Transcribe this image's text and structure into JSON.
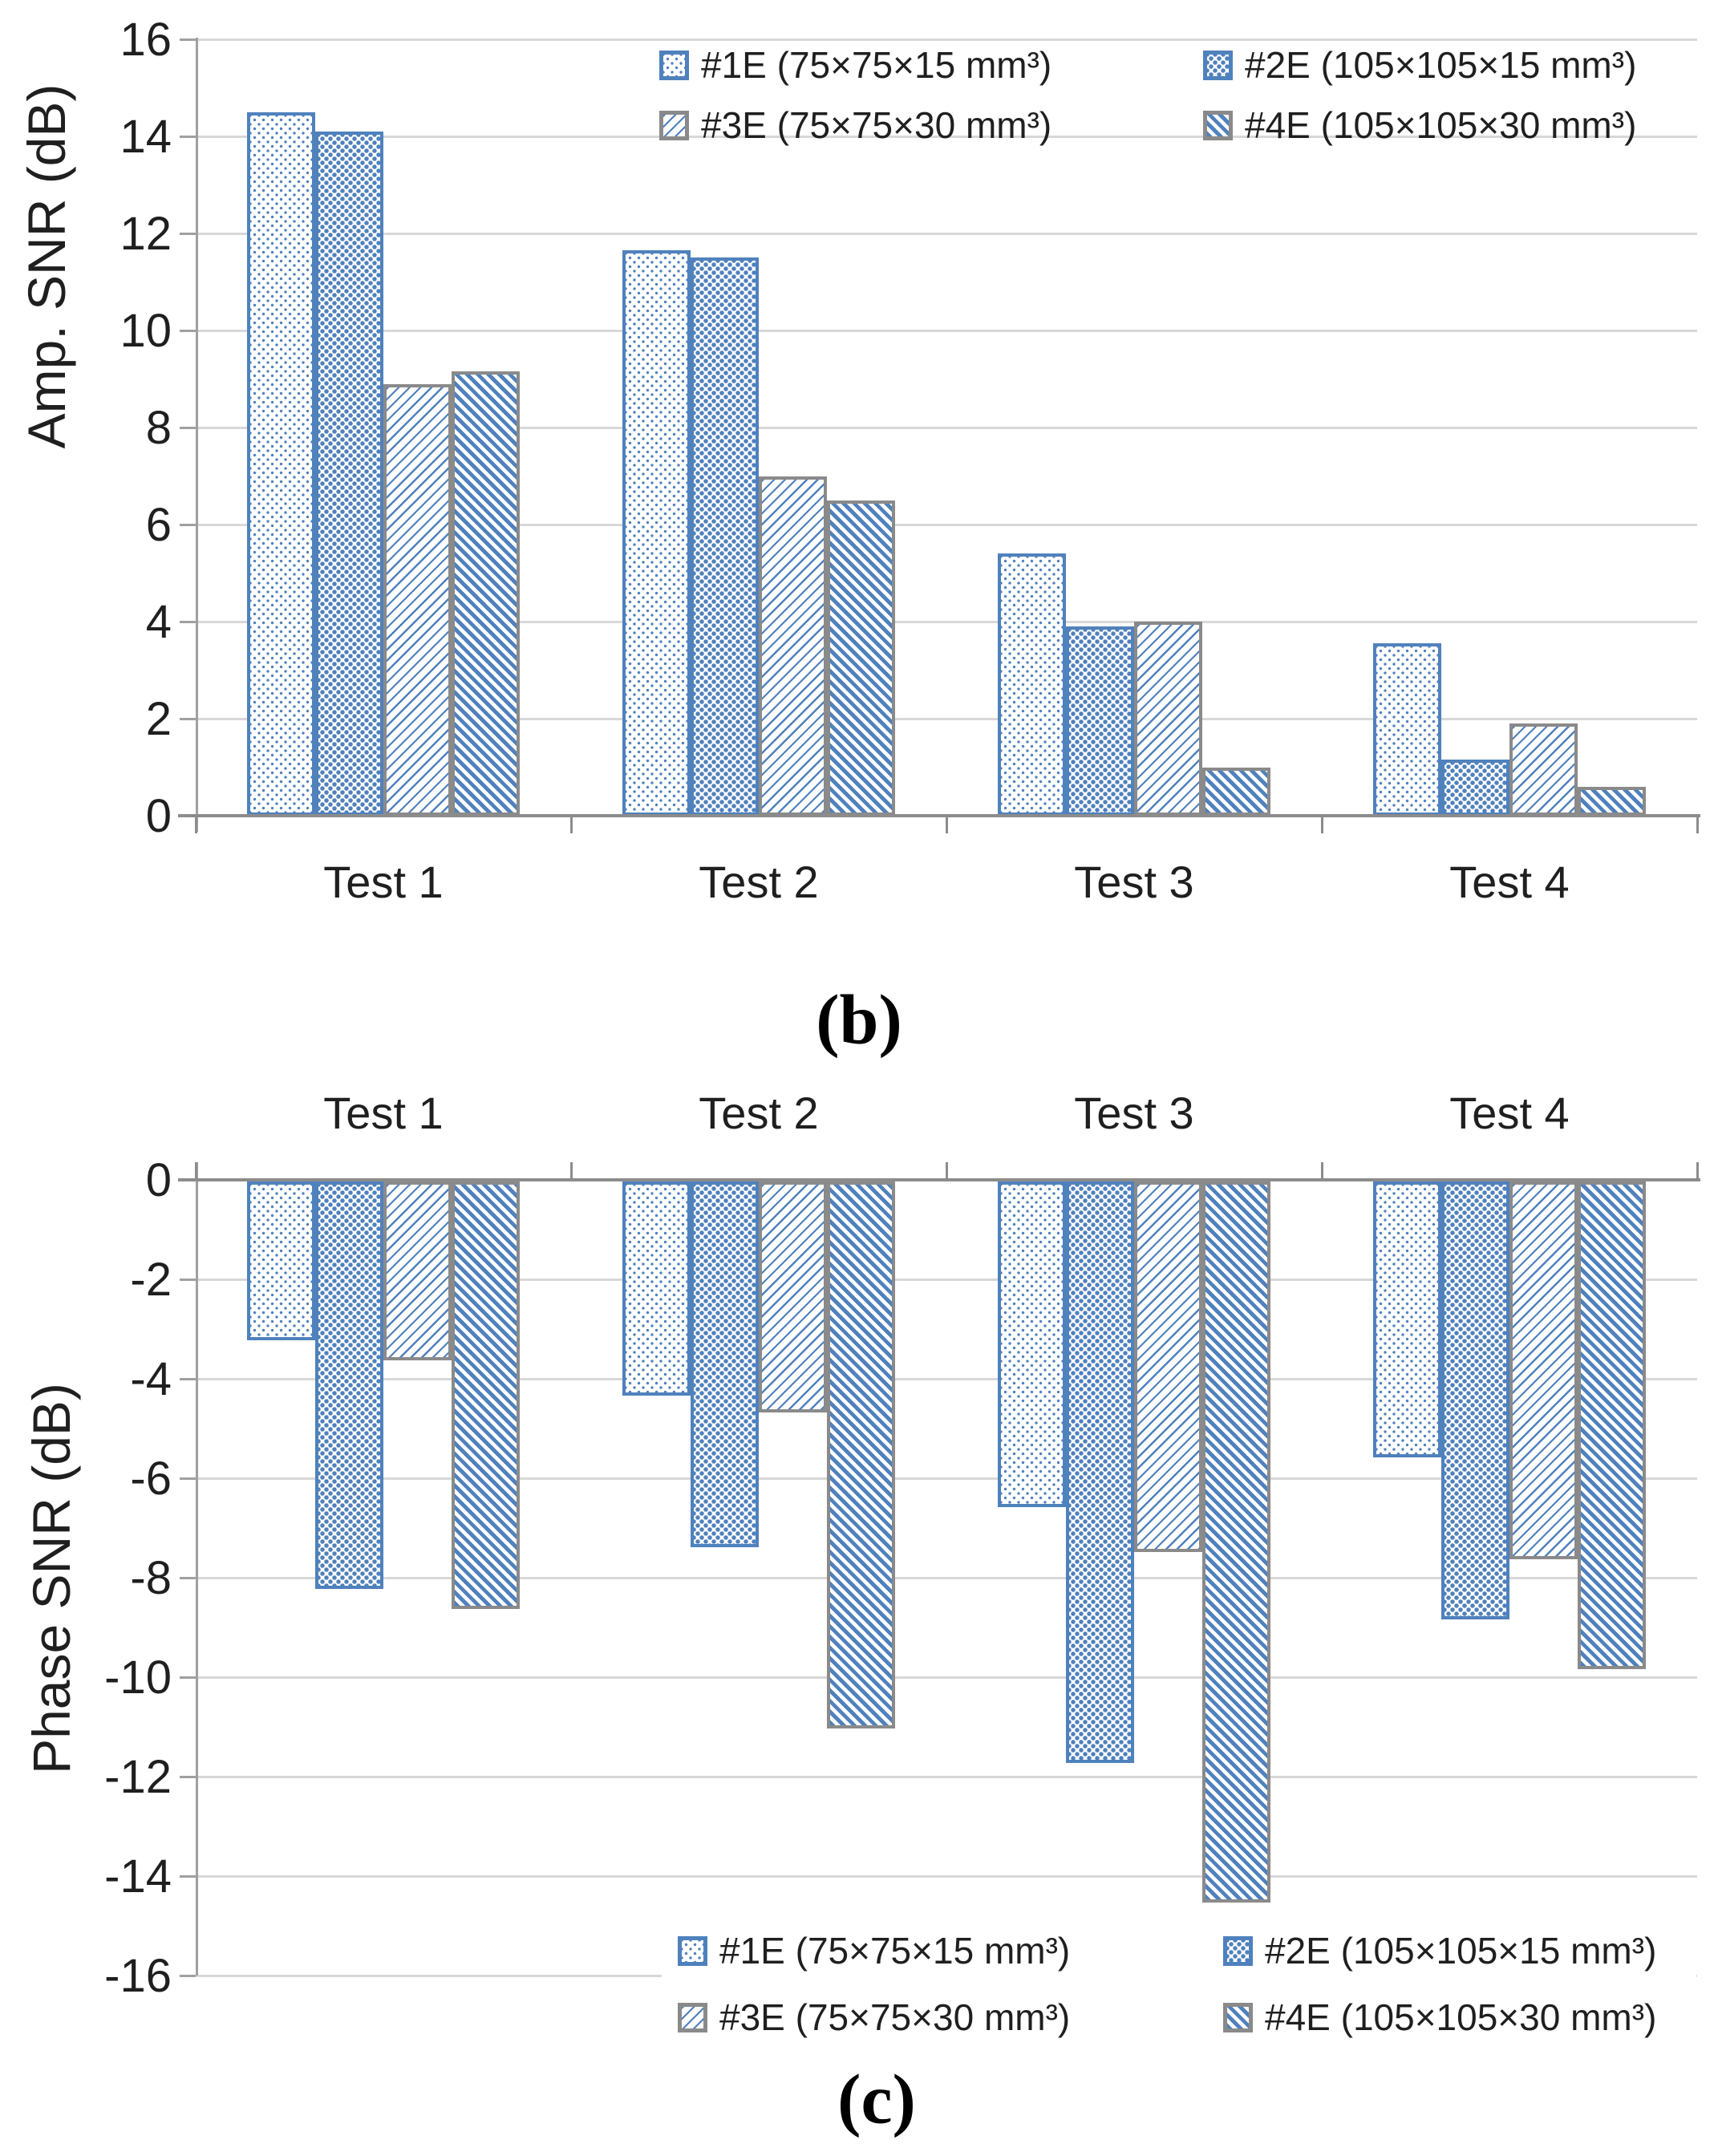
{
  "captions": {
    "b": "(b)",
    "c": "(c)"
  },
  "colors": {
    "series_blue": "#4f81bd",
    "gray_border": "#8a8a8a",
    "gridline": "#d8d8d8",
    "axis": "#8c8c8c",
    "text": "#1f1f1f"
  },
  "chart_data": [
    {
      "type": "bar",
      "title": "",
      "ylabel": "Amp. SNR (dB)",
      "xlabel": "",
      "categories": [
        "Test 1",
        "Test 2",
        "Test 3",
        "Test 4"
      ],
      "ylim": [
        0,
        16
      ],
      "ytick_step": 2,
      "ytick_labels": [
        "0",
        "2",
        "4",
        "6",
        "8",
        "10",
        "12",
        "14",
        "16"
      ],
      "grid": true,
      "legend_position": "top-right-inside",
      "series": [
        {
          "name": "#1E (75×75×15 mm³)",
          "pattern": "dots-fine",
          "border": "blue",
          "values": [
            14.5,
            11.65,
            5.4,
            3.55
          ]
        },
        {
          "name": "#2E (105×105×15 mm³)",
          "pattern": "dots-dense",
          "border": "blue",
          "values": [
            14.1,
            11.5,
            3.9,
            1.15
          ]
        },
        {
          "name": "#3E (75×75×30 mm³)",
          "pattern": "diag-up",
          "border": "gray",
          "values": [
            8.9,
            7.0,
            4.0,
            1.9
          ]
        },
        {
          "name": "#4E (105×105×30 mm³)",
          "pattern": "diag-down",
          "border": "gray",
          "values": [
            9.15,
            6.5,
            1.0,
            0.6
          ]
        }
      ]
    },
    {
      "type": "bar",
      "title": "",
      "ylabel": "Phase SNR (dB)",
      "xlabel": "",
      "categories": [
        "Test 1",
        "Test 2",
        "Test 3",
        "Test 4"
      ],
      "ylim": [
        -16,
        0
      ],
      "ytick_step": 2,
      "ytick_labels": [
        "0",
        "-2",
        "-4",
        "-6",
        "-8",
        "-10",
        "-12",
        "-14",
        "-16"
      ],
      "grid": true,
      "legend_position": "bottom-inside",
      "series": [
        {
          "name": "#1E (75×75×15 mm³)",
          "pattern": "dots-fine",
          "border": "blue",
          "values": [
            -3.2,
            -4.3,
            -6.55,
            -5.55
          ]
        },
        {
          "name": "#2E (105×105×15 mm³)",
          "pattern": "dots-dense",
          "border": "blue",
          "values": [
            -8.2,
            -7.35,
            -11.7,
            -8.8
          ]
        },
        {
          "name": "#3E (75×75×30 mm³)",
          "pattern": "diag-up",
          "border": "gray",
          "values": [
            -3.6,
            -4.65,
            -7.45,
            -7.6
          ]
        },
        {
          "name": "#4E (105×105×30 mm³)",
          "pattern": "diag-down",
          "border": "gray",
          "values": [
            -8.6,
            -11.0,
            -14.5,
            -9.8
          ]
        }
      ]
    }
  ]
}
